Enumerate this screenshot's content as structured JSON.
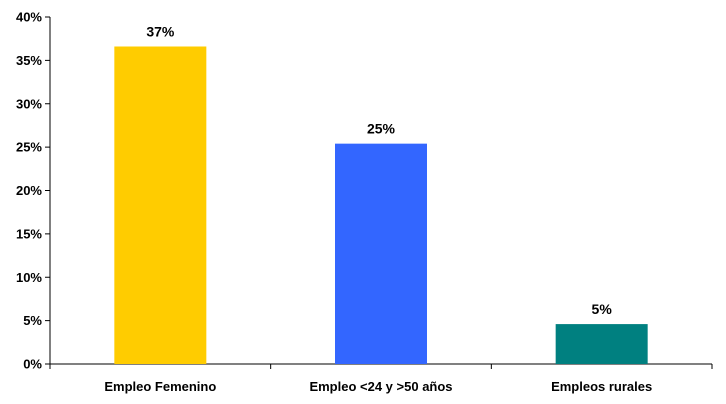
{
  "chart_data": {
    "type": "bar",
    "categories": [
      "Empleo Femenino",
      "Empleo <24 y >50 años",
      "Empleos rurales"
    ],
    "values": [
      36.6,
      25.4,
      4.6
    ],
    "data_labels": [
      "37%",
      "25%",
      "5%"
    ],
    "colors": [
      "#FFCC00",
      "#3366FF",
      "#008080"
    ],
    "title": "",
    "xlabel": "",
    "ylabel": "",
    "ylim": [
      0,
      40
    ],
    "yticks": [
      0,
      5,
      10,
      15,
      20,
      25,
      30,
      35,
      40
    ],
    "ytick_labels": [
      "0%",
      "5%",
      "10%",
      "15%",
      "20%",
      "25%",
      "30%",
      "35%",
      "40%"
    ],
    "grid": false,
    "legend": "none"
  }
}
